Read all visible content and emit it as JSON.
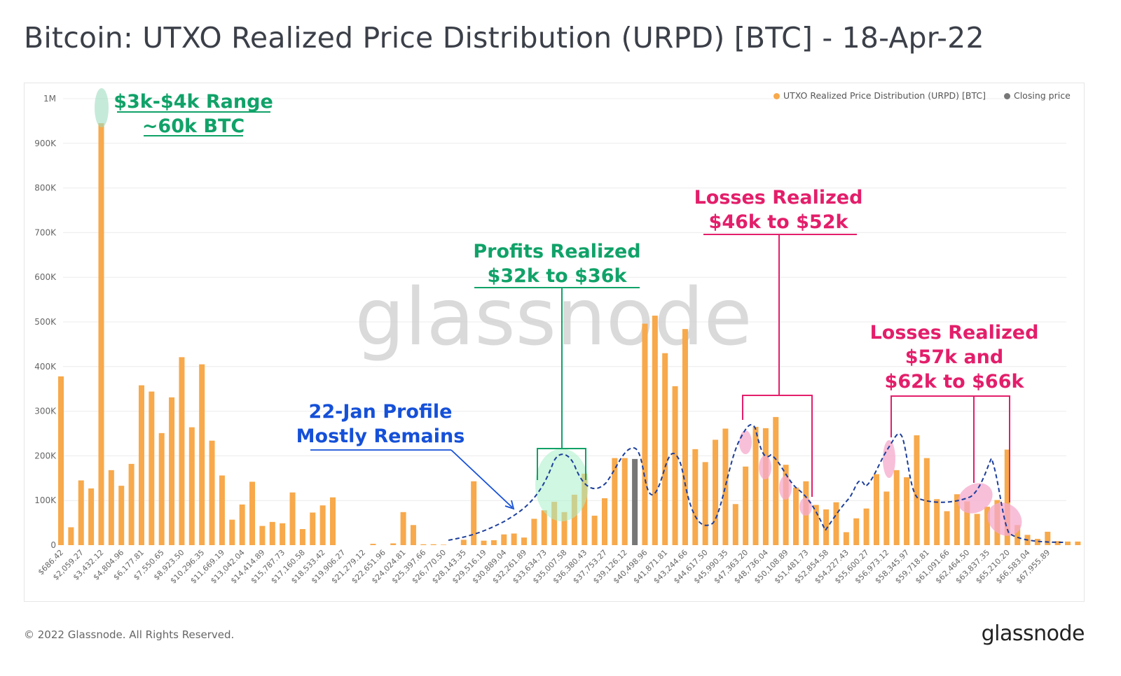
{
  "title": "Bitcoin: UTXO Realized Price Distribution (URPD) [BTC] - 18-Apr-22",
  "copyright": "© 2022 Glassnode. All Rights Reserved.",
  "brand": "glassnode",
  "watermark": "glassnode",
  "legend": {
    "urpd": "UTXO Realized Price Distribution (URPD) [BTC]",
    "closing": "Closing price"
  },
  "colors": {
    "bar": "#f7a94b",
    "closing_bar": "#777777",
    "green": "#10a268",
    "pink": "#e31e6a",
    "blue": "#1550d8",
    "grid": "#ececec"
  },
  "annotations": {
    "range_line1": "$3k-$4k Range",
    "range_line2": "~60k BTC",
    "profits_line1": "Profits Realized",
    "profits_line2": "$32k to $36k",
    "losses1_line1": "Losses Realized",
    "losses1_line2": "$46k to $52k",
    "losses2_line1": "Losses Realized",
    "losses2_line2": "$57k and",
    "losses2_line3": "$62k to $66k",
    "jan_line1": "22-Jan Profile",
    "jan_line2": "Mostly Remains"
  },
  "chart_data": {
    "type": "bar",
    "ylim": [
      0,
      1000000
    ],
    "y_ticks": [
      {
        "value": 0,
        "label": "0"
      },
      {
        "value": 100000,
        "label": "100K"
      },
      {
        "value": 200000,
        "label": "200K"
      },
      {
        "value": 300000,
        "label": "300K"
      },
      {
        "value": 400000,
        "label": "400K"
      },
      {
        "value": 500000,
        "label": "500K"
      },
      {
        "value": 600000,
        "label": "600K"
      },
      {
        "value": 700000,
        "label": "700K"
      },
      {
        "value": 800000,
        "label": "800K"
      },
      {
        "value": 900000,
        "label": "900K"
      },
      {
        "value": 1000000,
        "label": "1M"
      }
    ],
    "x_tick_labels": [
      "$686.42",
      "$2,059.27",
      "$3,432.12",
      "$4,804.96",
      "$6,177.81",
      "$7,550.65",
      "$8,923.50",
      "$10,296.35",
      "$11,669.19",
      "$13,042.04",
      "$14,414.89",
      "$15,787.73",
      "$17,160.58",
      "$18,533.42",
      "$19,906.27",
      "$21,279.12",
      "$22,651.96",
      "$24,024.81",
      "$25,397.66",
      "$26,770.50",
      "$28,143.35",
      "$29,516.19",
      "$30,889.04",
      "$32,261.89",
      "$33,634.73",
      "$35,007.58",
      "$36,380.43",
      "$37,753.27",
      "$39,126.12",
      "$40,498.96",
      "$41,871.81",
      "$43,244.66",
      "$44,617.50",
      "$45,990.35",
      "$47,363.20",
      "$48,736.04",
      "$50,108.89",
      "$51,481.73",
      "$52,854.58",
      "$54,227.43",
      "$55,600.27",
      "$56,973.12",
      "$58,345.97",
      "$59,718.81",
      "$61,091.66",
      "$62,464.50",
      "$63,837.35",
      "$65,210.20",
      "$66,583.04",
      "$67,955.89"
    ],
    "closing_index": 57,
    "values": [
      378000,
      40000,
      145000,
      127000,
      945000,
      168000,
      133000,
      182000,
      358000,
      344000,
      251000,
      331000,
      421000,
      264000,
      405000,
      234000,
      156000,
      57000,
      91000,
      142000,
      43000,
      52000,
      49000,
      118000,
      36000,
      73000,
      89000,
      107000,
      0,
      0,
      0,
      3000,
      0,
      4000,
      74000,
      45000,
      2000,
      2000,
      1000,
      0,
      12000,
      143000,
      10000,
      11000,
      24000,
      26000,
      17000,
      59000,
      78000,
      97000,
      74000,
      113000,
      160000,
      66000,
      105000,
      195000,
      195000,
      193000,
      496000,
      514000,
      430000,
      356000,
      484000,
      215000,
      186000,
      236000,
      261000,
      92000,
      176000,
      265000,
      262000,
      287000,
      180000,
      129000,
      143000,
      90000,
      80000,
      96000,
      29000,
      60000,
      82000,
      159000,
      120000,
      168000,
      152000,
      246000,
      195000,
      103000,
      76000,
      114000,
      98000,
      70000,
      86000,
      101000,
      214000,
      45000,
      23000,
      14000,
      30000,
      9000,
      8000,
      8000
    ]
  }
}
